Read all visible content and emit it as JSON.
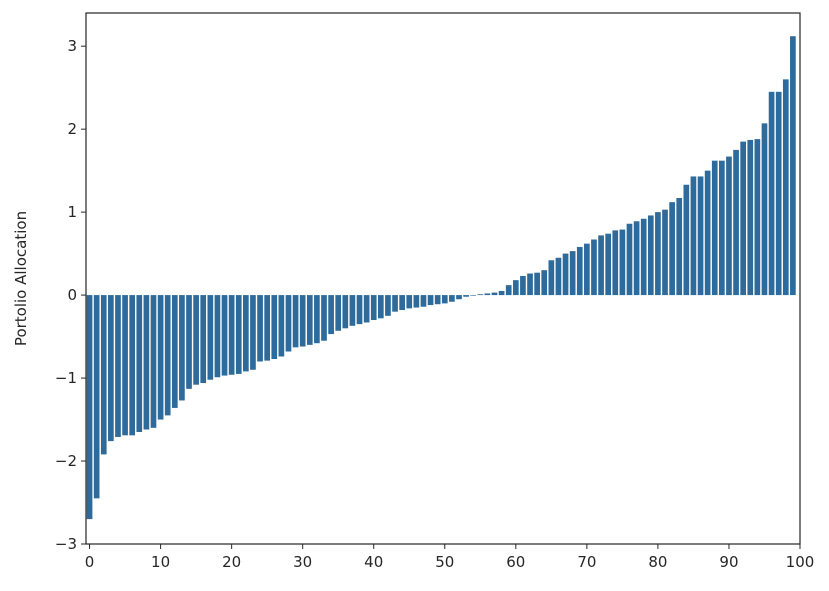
{
  "chart_data": {
    "type": "bar",
    "title": "",
    "xlabel": "",
    "ylabel": "Portolio Allocation",
    "xlim": [
      -0.5,
      100
    ],
    "ylim": [
      -3,
      3.4
    ],
    "grid": false,
    "bar_color": "#2e6a9a",
    "xticks": [
      0,
      10,
      20,
      30,
      40,
      50,
      60,
      70,
      80,
      90,
      100
    ],
    "yticks": [
      -3,
      -2,
      -1,
      0,
      1,
      2,
      3
    ],
    "xtick_labels": [
      "0",
      "10",
      "20",
      "30",
      "40",
      "50",
      "60",
      "70",
      "80",
      "90",
      "100"
    ],
    "ytick_labels": [
      "−3",
      "−2",
      "−1",
      "0",
      "1",
      "2",
      "3"
    ],
    "x": [
      0,
      1,
      2,
      3,
      4,
      5,
      6,
      7,
      8,
      9,
      10,
      11,
      12,
      13,
      14,
      15,
      16,
      17,
      18,
      19,
      20,
      21,
      22,
      23,
      24,
      25,
      26,
      27,
      28,
      29,
      30,
      31,
      32,
      33,
      34,
      35,
      36,
      37,
      38,
      39,
      40,
      41,
      42,
      43,
      44,
      45,
      46,
      47,
      48,
      49,
      50,
      51,
      52,
      53,
      54,
      55,
      56,
      57,
      58,
      59,
      60,
      61,
      62,
      63,
      64,
      65,
      66,
      67,
      68,
      69,
      70,
      71,
      72,
      73,
      74,
      75,
      76,
      77,
      78,
      79,
      80,
      81,
      82,
      83,
      84,
      85,
      86,
      87,
      88,
      89,
      90,
      91,
      92,
      93,
      94,
      95,
      96,
      97,
      98,
      99
    ],
    "values": [
      -2.7,
      -2.45,
      -1.92,
      -1.76,
      -1.71,
      -1.69,
      -1.69,
      -1.65,
      -1.62,
      -1.6,
      -1.5,
      -1.45,
      -1.36,
      -1.27,
      -1.13,
      -1.08,
      -1.06,
      -1.02,
      -0.99,
      -0.97,
      -0.96,
      -0.95,
      -0.92,
      -0.9,
      -0.8,
      -0.79,
      -0.77,
      -0.74,
      -0.68,
      -0.63,
      -0.62,
      -0.6,
      -0.58,
      -0.55,
      -0.47,
      -0.43,
      -0.4,
      -0.37,
      -0.35,
      -0.33,
      -0.3,
      -0.28,
      -0.25,
      -0.2,
      -0.18,
      -0.16,
      -0.15,
      -0.14,
      -0.12,
      -0.11,
      -0.1,
      -0.08,
      -0.05,
      -0.02,
      0.0,
      0.01,
      0.02,
      0.03,
      0.05,
      0.12,
      0.18,
      0.23,
      0.26,
      0.27,
      0.3,
      0.42,
      0.45,
      0.5,
      0.53,
      0.58,
      0.62,
      0.67,
      0.72,
      0.74,
      0.78,
      0.79,
      0.86,
      0.89,
      0.92,
      0.96,
      1.0,
      1.03,
      1.12,
      1.17,
      1.33,
      1.43,
      1.43,
      1.5,
      1.62,
      1.62,
      1.67,
      1.75,
      1.85,
      1.87,
      1.88,
      2.07,
      2.45,
      2.45,
      2.6,
      3.12
    ]
  }
}
